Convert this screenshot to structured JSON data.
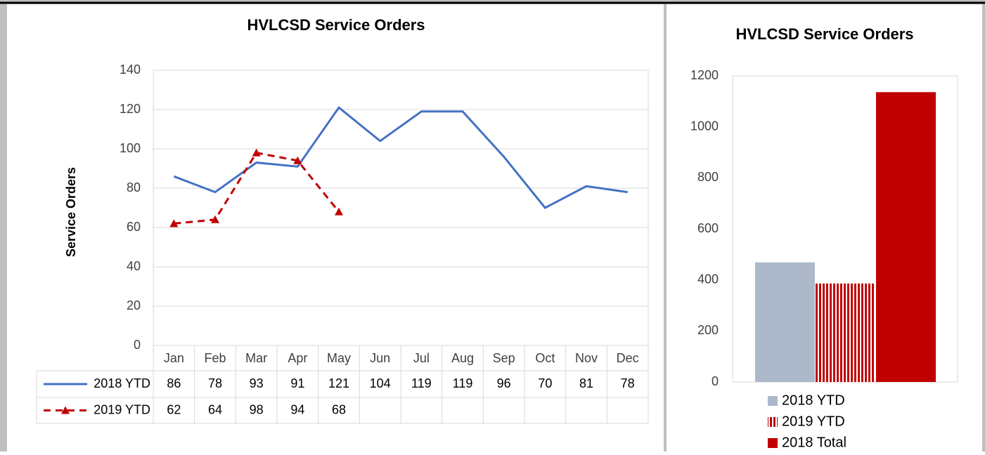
{
  "chart_data": [
    {
      "type": "line",
      "title": "HVLCSD Service Orders",
      "y_label": "Service Orders",
      "categories": [
        "Jan",
        "Feb",
        "Mar",
        "Apr",
        "May",
        "Jun",
        "Jul",
        "Aug",
        "Sep",
        "Oct",
        "Nov",
        "Dec"
      ],
      "series": [
        {
          "name": "2018 YTD",
          "color": "#4472c4",
          "dashed": false,
          "marker": null,
          "values": [
            86,
            78,
            93,
            91,
            121,
            104,
            119,
            119,
            96,
            70,
            81,
            78
          ]
        },
        {
          "name": "2019 YTD",
          "color": "#c00000",
          "dashed": true,
          "marker": "triangle",
          "values": [
            62,
            64,
            98,
            94,
            68,
            null,
            null,
            null,
            null,
            null,
            null,
            null
          ]
        }
      ],
      "ylim": [
        0,
        140
      ],
      "yticks": [
        0,
        20,
        40,
        60,
        80,
        100,
        120,
        140
      ],
      "grid": true,
      "data_table": true
    },
    {
      "type": "bar",
      "title": "HVLCSD Service Orders",
      "series": [
        {
          "name": "2018 YTD",
          "color": "#adb9ca",
          "values": [
            469
          ]
        },
        {
          "name": "2019 YTD",
          "color": "#c00000",
          "pattern": "vertical-stripes",
          "values": [
            386
          ]
        },
        {
          "name": "2018 Total",
          "color": "#c00000",
          "values": [
            1136
          ]
        }
      ],
      "ylim": [
        0,
        1200
      ],
      "yticks": [
        0,
        200,
        400,
        600,
        800,
        1000,
        1200
      ],
      "grid": false,
      "legend": "bottom"
    }
  ]
}
